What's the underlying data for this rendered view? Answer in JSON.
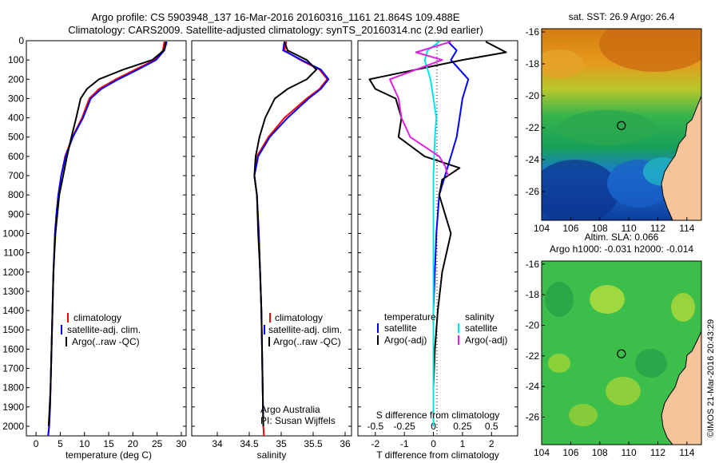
{
  "header": {
    "line1": "Argo profile: CS 5903948_137 16-Mar-2016 20160316_1161 21.864S 109.488E",
    "line2": "Climatology: CARS2009. Satellite-adjusted climatology: synTS_20160314.nc (2.9d earlier)"
  },
  "colors": {
    "climatology": "#ff0000",
    "satellite": "#0000ff",
    "argo": "#000000",
    "sal_satellite": "#00e5ee",
    "sal_argo": "#e020e0"
  },
  "chart_data": [
    {
      "type": "line",
      "xlabel": "temperature (deg C)",
      "ylabel": "",
      "xlim": [
        -2,
        31
      ],
      "ylim": [
        2050,
        0
      ],
      "xticks": [
        0,
        5,
        10,
        15,
        20,
        25,
        30
      ],
      "yticks": [
        0,
        100,
        200,
        300,
        400,
        500,
        600,
        700,
        800,
        900,
        1000,
        1100,
        1200,
        1300,
        1400,
        1500,
        1600,
        1700,
        1800,
        1900,
        2000
      ],
      "legend": [
        "climatology",
        "satellite-adj. clim.",
        "Argo(..raw -QC)"
      ],
      "series": [
        {
          "name": "climatology",
          "x": [
            26.5,
            26.2,
            24.5,
            20.5,
            16.5,
            13.0,
            11.0,
            9.5,
            7.5,
            6.0,
            5.2,
            4.6,
            4.2,
            3.9,
            3.6,
            3.4,
            3.2,
            3.0,
            2.9,
            2.7,
            2.5
          ],
          "y": [
            5,
            50,
            100,
            150,
            200,
            250,
            300,
            400,
            500,
            600,
            700,
            800,
            900,
            1000,
            1200,
            1400,
            1600,
            1800,
            1900,
            2000,
            2050
          ]
        },
        {
          "name": "satellite-adj. clim.",
          "x": [
            27.0,
            26.5,
            24.8,
            21.0,
            17.0,
            13.5,
            11.3,
            9.7,
            7.6,
            6.1,
            5.2,
            4.6,
            4.2,
            3.9,
            3.6,
            3.4,
            3.2,
            3.0,
            2.9,
            2.7,
            2.5
          ],
          "y": [
            5,
            50,
            100,
            150,
            200,
            250,
            300,
            400,
            500,
            600,
            700,
            800,
            900,
            1000,
            1200,
            1400,
            1600,
            1800,
            1900,
            2000,
            2050
          ]
        },
        {
          "name": "Argo(..raw -QC)",
          "x": [
            26.8,
            26.4,
            24.0,
            18.0,
            13.0,
            10.5,
            9.2,
            8.3,
            7.3,
            6.4,
            5.6,
            4.8,
            4.4,
            4.0,
            3.6,
            3.4,
            3.2,
            3.0,
            2.8,
            2.6
          ],
          "y": [
            5,
            50,
            100,
            150,
            200,
            250,
            300,
            400,
            500,
            600,
            700,
            800,
            900,
            1000,
            1200,
            1400,
            1600,
            1800,
            1900,
            2000
          ]
        }
      ]
    },
    {
      "type": "line",
      "xlabel": "salinity",
      "ylabel": "",
      "xlim": [
        33.6,
        36.1
      ],
      "ylim": [
        2050,
        0
      ],
      "xticks": [
        34,
        34.5,
        35,
        35.5,
        36
      ],
      "legend": [
        "climatology",
        "satellite-adj. clim.",
        "Argo(..raw -QC)"
      ],
      "annotation": [
        "Argo Australia",
        "PI: Susan Wijffels"
      ],
      "series": [
        {
          "name": "climatology",
          "x": [
            35.08,
            35.05,
            35.3,
            35.6,
            35.72,
            35.6,
            35.4,
            35.05,
            34.8,
            34.62,
            34.58,
            34.62,
            34.65,
            34.67,
            34.69,
            34.7,
            34.71,
            34.72,
            34.73
          ],
          "y": [
            5,
            50,
            100,
            150,
            200,
            250,
            300,
            400,
            500,
            600,
            700,
            800,
            1000,
            1200,
            1400,
            1600,
            1800,
            2000,
            2050
          ]
        },
        {
          "name": "satellite-adj. clim.",
          "x": [
            35.05,
            35.03,
            35.32,
            35.62,
            35.74,
            35.62,
            35.43,
            35.1,
            34.82,
            34.64,
            34.58,
            34.62,
            34.65,
            34.67,
            34.69,
            34.7,
            34.71,
            34.72
          ],
          "y": [
            5,
            50,
            100,
            150,
            200,
            250,
            300,
            400,
            500,
            600,
            700,
            800,
            1000,
            1200,
            1400,
            1600,
            1800,
            2000
          ]
        },
        {
          "name": "Argo(..raw -QC)",
          "x": [
            35.05,
            35.1,
            35.4,
            35.55,
            35.4,
            35.1,
            34.9,
            34.75,
            34.66,
            34.6,
            34.58,
            34.62,
            34.64,
            34.67,
            34.69,
            34.7,
            34.71,
            34.72
          ],
          "y": [
            5,
            50,
            100,
            150,
            200,
            250,
            300,
            400,
            500,
            600,
            700,
            800,
            1000,
            1200,
            1400,
            1600,
            1800,
            2000
          ]
        }
      ]
    },
    {
      "type": "line",
      "xlabel": "T difference from climatology",
      "xlabel_top": "S difference from climatology",
      "ylabel": "",
      "xlim": [
        -2.6,
        2.9
      ],
      "ylim": [
        2050,
        0
      ],
      "xticks": [
        -2,
        -1,
        0,
        1,
        2
      ],
      "xticks_top_labels": [
        "-0.5",
        "-0.25",
        "0",
        "0.25",
        "0.5"
      ],
      "legend_headers": [
        "temperature",
        "salinity"
      ],
      "legend": [
        "satellite",
        "Argo(-adj)",
        "satellite",
        "Argo(-adj)"
      ],
      "series": [
        {
          "name": "satellite",
          "x": [
            0.5,
            0.8,
            0.6,
            0.9,
            1.2,
            1.0,
            0.9,
            0.8,
            0.6,
            0.4,
            0.2,
            0.1,
            0.05,
            0.0,
            0.0,
            0.0
          ],
          "y": [
            5,
            50,
            100,
            150,
            200,
            300,
            400,
            500,
            600,
            700,
            800,
            1000,
            1200,
            1400,
            1700,
            2000
          ]
        },
        {
          "name": "Argo(-adj)",
          "x": [
            1.8,
            2.5,
            1.0,
            -2.2,
            -2.0,
            -1.3,
            -1.1,
            -1.2,
            -0.3,
            0.9,
            0.3,
            0.2,
            0.6,
            0.3,
            0.15,
            0.05,
            0.0,
            0.0
          ],
          "y": [
            5,
            60,
            100,
            200,
            250,
            300,
            400,
            500,
            600,
            660,
            720,
            800,
            1000,
            1200,
            1400,
            1600,
            1800,
            2000
          ]
        },
        {
          "name": "satellite",
          "x": [
            0.2,
            -0.2,
            -0.3,
            -0.1,
            0.0,
            0.1,
            0.05,
            0.0,
            0.0,
            0.0,
            0.0
          ],
          "y": [
            5,
            50,
            100,
            200,
            300,
            400,
            500,
            700,
            1000,
            1500,
            2000
          ]
        },
        {
          "name": "Argo(-adj)",
          "x": [
            0.6,
            -0.6,
            0.3,
            -1.5,
            -1.2,
            -1.1,
            -0.8,
            -0.2,
            0.2,
            0.4,
            0.5
          ],
          "y": [
            5,
            60,
            100,
            200,
            300,
            400,
            500,
            560,
            600,
            650,
            700
          ]
        }
      ]
    }
  ],
  "maps": [
    {
      "title": "sat. SST: 26.9 Argo: 26.4",
      "title2": "",
      "xticks": [
        104,
        106,
        108,
        110,
        112,
        114
      ],
      "yticks": [
        -16,
        -18,
        -20,
        -22,
        -24,
        -26
      ],
      "xlim": [
        104,
        115
      ],
      "ylim": [
        -27.8,
        -15.8
      ],
      "marker": [
        109.488,
        -21.864
      ]
    },
    {
      "title": "Altim. SLA: 0.066",
      "title2": "Argo h1000: -0.031 h2000: -0.014",
      "xticks": [
        104,
        106,
        108,
        110,
        112,
        114
      ],
      "yticks": [
        -16,
        -18,
        -20,
        -22,
        -24,
        -26
      ],
      "xlim": [
        104,
        115
      ],
      "ylim": [
        -27.8,
        -15.8
      ],
      "marker": [
        109.488,
        -21.864
      ]
    }
  ],
  "credit": "©IMOS 21-Mar-2016 20:43:29"
}
